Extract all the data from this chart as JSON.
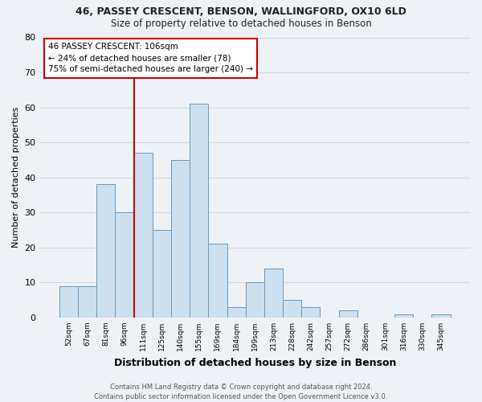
{
  "title1": "46, PASSEY CRESCENT, BENSON, WALLINGFORD, OX10 6LD",
  "title2": "Size of property relative to detached houses in Benson",
  "xlabel": "Distribution of detached houses by size in Benson",
  "ylabel": "Number of detached properties",
  "categories": [
    "52sqm",
    "67sqm",
    "81sqm",
    "96sqm",
    "111sqm",
    "125sqm",
    "140sqm",
    "155sqm",
    "169sqm",
    "184sqm",
    "199sqm",
    "213sqm",
    "228sqm",
    "242sqm",
    "257sqm",
    "272sqm",
    "286sqm",
    "301sqm",
    "316sqm",
    "330sqm",
    "345sqm"
  ],
  "values": [
    9,
    9,
    38,
    30,
    47,
    25,
    45,
    61,
    21,
    3,
    10,
    14,
    5,
    3,
    0,
    2,
    0,
    0,
    1,
    0,
    1
  ],
  "bar_color": "#cce0f0",
  "bar_edge_color": "#6699bb",
  "vline_x": 4,
  "vline_color": "#cc0000",
  "annotation_text": "46 PASSEY CRESCENT: 106sqm\n← 24% of detached houses are smaller (78)\n75% of semi-detached houses are larger (240) →",
  "annotation_box_color": "#ffffff",
  "annotation_box_edge": "#cc0000",
  "footer1": "Contains HM Land Registry data © Crown copyright and database right 2024.",
  "footer2": "Contains public sector information licensed under the Open Government Licence v3.0.",
  "ylim": [
    0,
    80
  ],
  "yticks": [
    0,
    10,
    20,
    30,
    40,
    50,
    60,
    70,
    80
  ],
  "grid_color": "#d0d8e0",
  "bg_color": "#eef2f7"
}
